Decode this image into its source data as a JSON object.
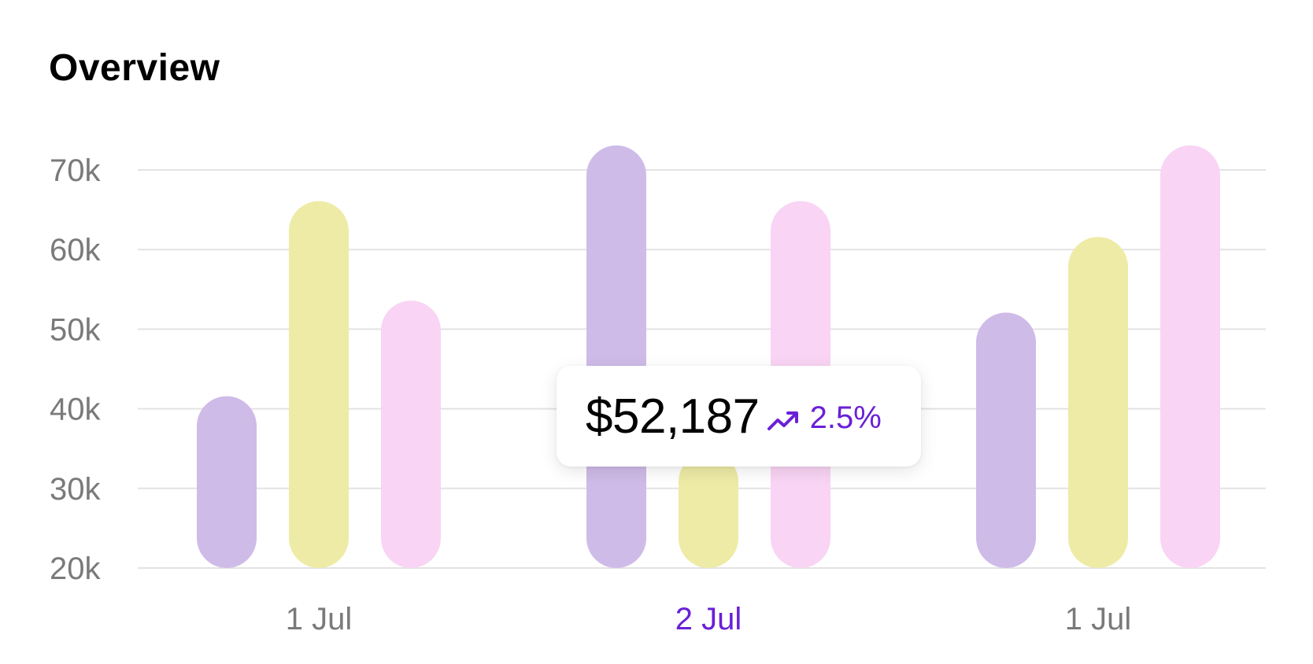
{
  "header": {
    "title": "Overview"
  },
  "colors": {
    "series_a": "#cfbbe8",
    "series_b": "#eeeba6",
    "series_c": "#f9d4f4",
    "accent": "#6a1fd8",
    "grid": "#e3e3e3",
    "axis_text": "#7a7a7a"
  },
  "chart_data": {
    "type": "bar",
    "categories": [
      "1 Jul",
      "2 Jul",
      "1 Jul"
    ],
    "active_category_index": 1,
    "series": [
      {
        "values": [
          40,
          71.5,
          50.5
        ]
      },
      {
        "values": [
          64.5,
          33,
          60
        ]
      },
      {
        "values": [
          52,
          64.5,
          71.5
        ]
      }
    ],
    "ylim": [
      20,
      70
    ],
    "yticks": [
      "20k",
      "30k",
      "40k",
      "50k",
      "60k",
      "70k"
    ],
    "grid": true,
    "xlabel": "",
    "ylabel": ""
  },
  "tooltip": {
    "value": "$52,187",
    "change": "2.5%",
    "trend_icon": "trending-up-icon"
  }
}
